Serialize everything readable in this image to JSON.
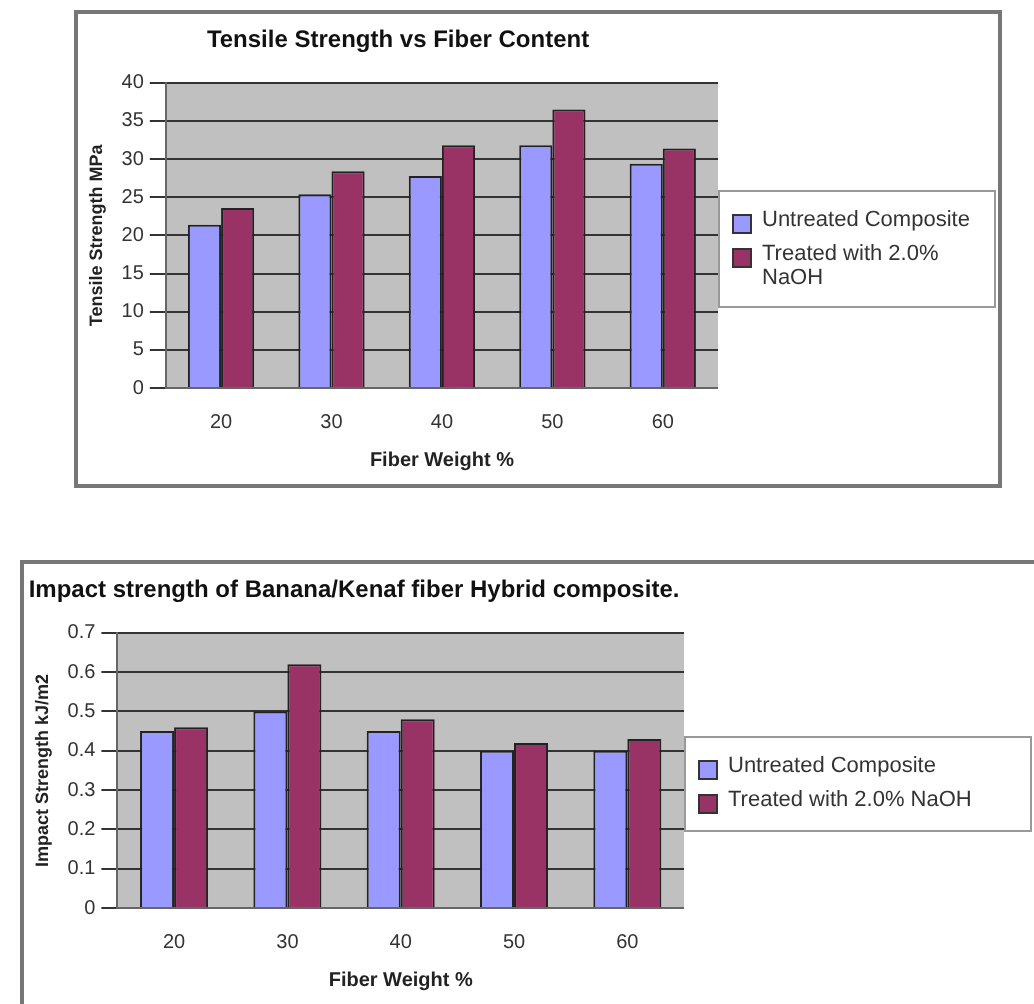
{
  "chart_data": [
    {
      "type": "bar",
      "title": "Tensile Strength vs Fiber Content",
      "xlabel": "Fiber Weight %",
      "ylabel": "Tensile Strength MPa",
      "categories": [
        "20",
        "30",
        "40",
        "50",
        "60"
      ],
      "series": [
        {
          "name": "Untreated Composite",
          "color": "#9999ff",
          "values": [
            21.4,
            25.4,
            27.8,
            31.8,
            29.4
          ]
        },
        {
          "name": "Treated with 2.0% NaOH",
          "color": "#993366",
          "values": [
            23.6,
            28.4,
            31.8,
            36.5,
            31.4
          ]
        }
      ],
      "ylim": [
        0,
        40
      ],
      "yticks": [
        0,
        5,
        10,
        15,
        20,
        25,
        30,
        35,
        40
      ],
      "grid": "y",
      "legend": "right"
    },
    {
      "type": "bar",
      "title": "Impact strength of Banana/Kenaf fiber Hybrid composite.",
      "xlabel": "Fiber Weight %",
      "ylabel": "Impact Strength kJ/m2",
      "categories": [
        "20",
        "30",
        "40",
        "50",
        "60"
      ],
      "series": [
        {
          "name": "Untreated Composite",
          "color": "#9999ff",
          "values": [
            0.45,
            0.5,
            0.45,
            0.4,
            0.4
          ]
        },
        {
          "name": "Treated with 2.0% NaOH",
          "color": "#993366",
          "values": [
            0.46,
            0.62,
            0.48,
            0.42,
            0.43
          ]
        }
      ],
      "ylim": [
        0,
        0.7
      ],
      "yticks": [
        0,
        0.1,
        0.2,
        0.3,
        0.4,
        0.5,
        0.6,
        0.7
      ],
      "grid": "y",
      "legend": "right"
    }
  ]
}
